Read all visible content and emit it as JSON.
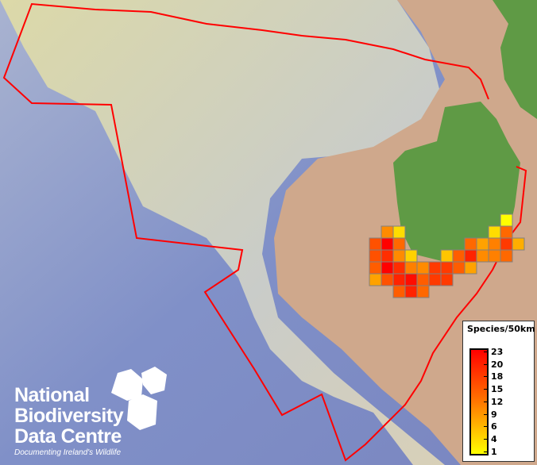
{
  "map": {
    "colors": {
      "ocean": "#7f8fc8",
      "shelf": "#d9d6ae",
      "land": "#cfa88c",
      "ireland": "#5f9a45",
      "boundary": "#ff0000",
      "cell_border": "#808080"
    },
    "grid_cells": [
      {
        "row": 0,
        "col": 11,
        "species": 1
      },
      {
        "row": 1,
        "col": 1,
        "species": 11
      },
      {
        "row": 1,
        "col": 2,
        "species": 4
      },
      {
        "row": 1,
        "col": 10,
        "species": 4
      },
      {
        "row": 1,
        "col": 11,
        "species": 14
      },
      {
        "row": 2,
        "col": 0,
        "species": 16
      },
      {
        "row": 2,
        "col": 1,
        "species": 23
      },
      {
        "row": 2,
        "col": 2,
        "species": 14
      },
      {
        "row": 2,
        "col": 8,
        "species": 14
      },
      {
        "row": 2,
        "col": 9,
        "species": 9
      },
      {
        "row": 2,
        "col": 10,
        "species": 12
      },
      {
        "row": 2,
        "col": 11,
        "species": 18
      },
      {
        "row": 2,
        "col": 12,
        "species": 8
      },
      {
        "row": 3,
        "col": 0,
        "species": 16
      },
      {
        "row": 3,
        "col": 1,
        "species": 19
      },
      {
        "row": 3,
        "col": 2,
        "species": 11
      },
      {
        "row": 3,
        "col": 3,
        "species": 5
      },
      {
        "row": 3,
        "col": 6,
        "species": 6
      },
      {
        "row": 3,
        "col": 7,
        "species": 15
      },
      {
        "row": 3,
        "col": 8,
        "species": 20
      },
      {
        "row": 3,
        "col": 9,
        "species": 11
      },
      {
        "row": 3,
        "col": 10,
        "species": 12
      },
      {
        "row": 3,
        "col": 11,
        "species": 14
      },
      {
        "row": 4,
        "col": 0,
        "species": 15
      },
      {
        "row": 4,
        "col": 1,
        "species": 23
      },
      {
        "row": 4,
        "col": 2,
        "species": 19
      },
      {
        "row": 4,
        "col": 3,
        "species": 12
      },
      {
        "row": 4,
        "col": 4,
        "species": 11
      },
      {
        "row": 4,
        "col": 5,
        "species": 18
      },
      {
        "row": 4,
        "col": 6,
        "species": 18
      },
      {
        "row": 4,
        "col": 7,
        "species": 15
      },
      {
        "row": 4,
        "col": 8,
        "species": 9
      },
      {
        "row": 5,
        "col": 0,
        "species": 9
      },
      {
        "row": 5,
        "col": 1,
        "species": 16
      },
      {
        "row": 5,
        "col": 2,
        "species": 20
      },
      {
        "row": 5,
        "col": 3,
        "species": 22
      },
      {
        "row": 5,
        "col": 4,
        "species": 15
      },
      {
        "row": 5,
        "col": 5,
        "species": 18
      },
      {
        "row": 5,
        "col": 6,
        "species": 18
      },
      {
        "row": 6,
        "col": 2,
        "species": 15
      },
      {
        "row": 6,
        "col": 3,
        "species": 20
      },
      {
        "row": 6,
        "col": 4,
        "species": 14
      }
    ]
  },
  "legend": {
    "title": "Species/50km",
    "ticks": [
      "23",
      "20",
      "18",
      "15",
      "12",
      "9",
      "6",
      "4",
      "1"
    ],
    "min": 1,
    "max": 23,
    "colors": {
      "high": "#ff0000",
      "mid": "#ff7700",
      "low": "#ffff00"
    }
  },
  "logo": {
    "lines": [
      "National",
      "Biodiversity",
      "Data Centre"
    ],
    "tagline": "Documenting Ireland's Wildlife"
  }
}
